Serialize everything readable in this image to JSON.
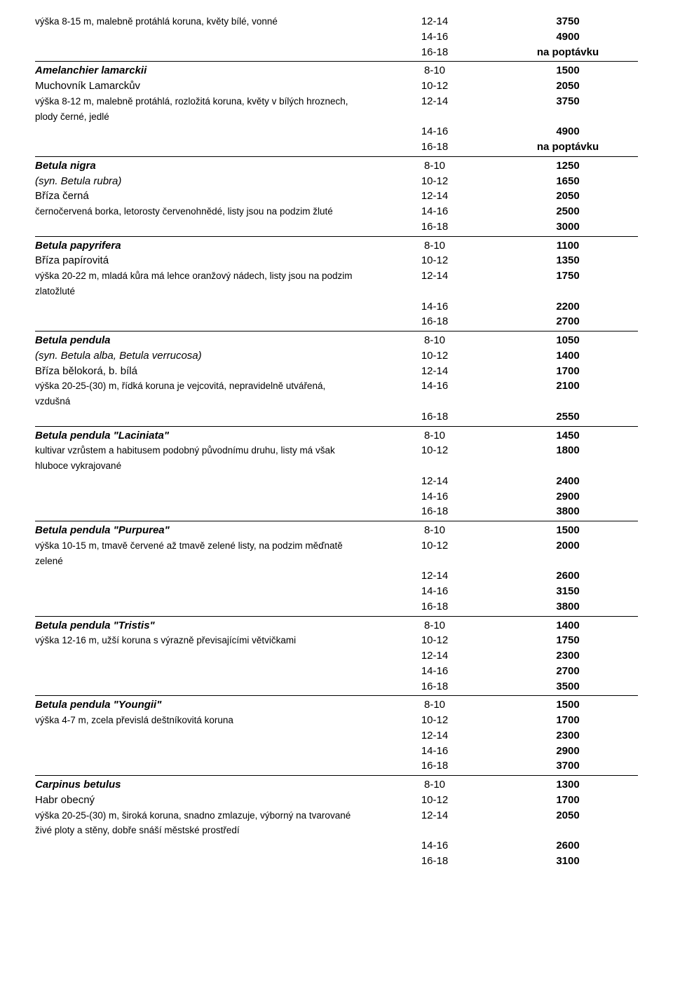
{
  "species": [
    {
      "top_desc": "výška 8-15 m, malebně protáhlá koruna, květy bílé, vonné",
      "rows": [
        {
          "size": "12-14",
          "price": "3750"
        },
        {
          "size": "14-16",
          "price": "4900"
        },
        {
          "size": "16-18",
          "price": "na poptávku"
        }
      ]
    },
    {
      "name": "Amelanchier lamarckii",
      "common": "Muchovník Lamarckův",
      "desc": "výška 8-12 m, malebně protáhlá, rozložitá koruna, květy v bílých hroznech, plody černé, jedlé",
      "rows": [
        {
          "size": "8-10",
          "price": "1500"
        },
        {
          "size": "10-12",
          "price": "2050"
        },
        {
          "size": "12-14",
          "price": "3750"
        },
        {
          "size": "14-16",
          "price": "4900"
        },
        {
          "size": "16-18",
          "price": "na poptávku"
        }
      ]
    },
    {
      "name": "Betula nigra",
      "syn": "(syn. Betula rubra)",
      "common": "Bříza černá",
      "desc": "černočervená borka, letorosty červenohnědé, listy jsou na podzim žluté",
      "rows": [
        {
          "size": "8-10",
          "price": "1250"
        },
        {
          "size": "10-12",
          "price": "1650"
        },
        {
          "size": "12-14",
          "price": "2050"
        },
        {
          "size": "14-16",
          "price": "2500"
        },
        {
          "size": "16-18",
          "price": "3000"
        }
      ]
    },
    {
      "name": "Betula papyrifera",
      "common": "Bříza papírovitá",
      "desc": "výška 20-22 m, mladá kůra má lehce oranžový nádech, listy jsou na podzim zlatožluté",
      "rows": [
        {
          "size": "8-10",
          "price": "1100"
        },
        {
          "size": "10-12",
          "price": "1350"
        },
        {
          "size": "12-14",
          "price": "1750"
        },
        {
          "size": "14-16",
          "price": "2200"
        },
        {
          "size": "16-18",
          "price": "2700"
        }
      ]
    },
    {
      "name": "Betula pendula",
      "syn": "(syn. Betula alba, Betula verrucosa)",
      "common": "Bříza bělokorá, b. bílá",
      "desc": "výška 20-25-(30) m, řídká koruna je vejcovitá, nepravidelně utvářená, vzdušná",
      "rows": [
        {
          "size": "8-10",
          "price": "1050"
        },
        {
          "size": "10-12",
          "price": "1400"
        },
        {
          "size": "12-14",
          "price": "1700"
        },
        {
          "size": "14-16",
          "price": "2100"
        },
        {
          "size": "16-18",
          "price": "2550"
        }
      ]
    },
    {
      "name": "Betula pendula \"Laciniata\"",
      "desc": "kultivar vzrůstem a habitusem podobný původnímu druhu, listy má však hluboce vykrajované",
      "rows": [
        {
          "size": "8-10",
          "price": "1450"
        },
        {
          "size": "10-12",
          "price": "1800"
        },
        {
          "size": "12-14",
          "price": "2400"
        },
        {
          "size": "14-16",
          "price": "2900"
        },
        {
          "size": "16-18",
          "price": "3800"
        }
      ]
    },
    {
      "name": "Betula pendula \"Purpurea\"",
      "desc": "výška 10-15 m, tmavě červené až tmavě zelené listy, na podzim měďnatě zelené",
      "rows": [
        {
          "size": "8-10",
          "price": "1500"
        },
        {
          "size": "10-12",
          "price": "2000"
        },
        {
          "size": "12-14",
          "price": "2600"
        },
        {
          "size": "14-16",
          "price": "3150"
        },
        {
          "size": "16-18",
          "price": "3800"
        }
      ]
    },
    {
      "name": "Betula pendula \"Tristis\"",
      "desc": "výška 12-16 m, užší koruna s výrazně převisajícími větvičkami",
      "rows": [
        {
          "size": "8-10",
          "price": "1400"
        },
        {
          "size": "10-12",
          "price": "1750"
        },
        {
          "size": "12-14",
          "price": "2300"
        },
        {
          "size": "14-16",
          "price": "2700"
        },
        {
          "size": "16-18",
          "price": "3500"
        }
      ]
    },
    {
      "name": "Betula pendula \"Youngii\"",
      "desc": "výška 4-7 m, zcela převislá deštníkovitá koruna",
      "rows": [
        {
          "size": "8-10",
          "price": "1500"
        },
        {
          "size": "10-12",
          "price": "1700"
        },
        {
          "size": "12-14",
          "price": "2300"
        },
        {
          "size": "14-16",
          "price": "2900"
        },
        {
          "size": "16-18",
          "price": "3700"
        }
      ]
    },
    {
      "name": "Carpinus betulus",
      "common": "Habr obecný",
      "desc": "výška 20-25-(30) m, široká koruna, snadno zmlazuje, výborný na tvarované živé ploty a stěny, dobře snáší městské prostředí",
      "rows": [
        {
          "size": "8-10",
          "price": "1300"
        },
        {
          "size": "10-12",
          "price": "1700"
        },
        {
          "size": "12-14",
          "price": "2050"
        },
        {
          "size": "14-16",
          "price": "2600"
        },
        {
          "size": "16-18",
          "price": "3100"
        }
      ]
    }
  ]
}
